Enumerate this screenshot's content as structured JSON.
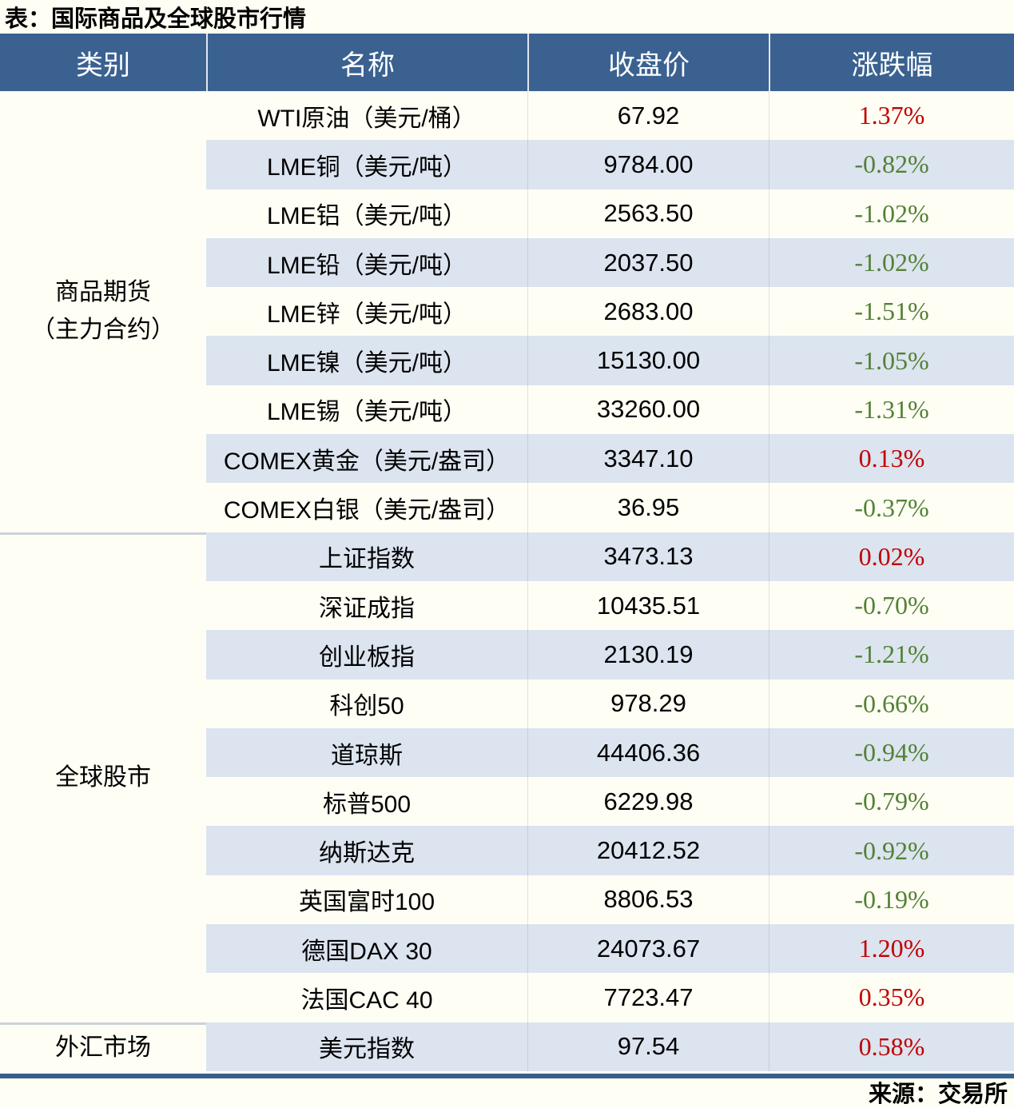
{
  "title": "表：国际商品及全球股市行情",
  "source": "来源：交易所",
  "columns": [
    "类别",
    "名称",
    "收盘价",
    "涨跌幅"
  ],
  "colors": {
    "header_bg": "#3A6190",
    "stripe_bg": "#DBE4EF",
    "cream_bg": "#FFFEF4",
    "up": "#C00000",
    "down": "#538135",
    "bottom_line": "#355F8D",
    "divider": "#CBD2D9"
  },
  "sections": [
    {
      "category_lines": [
        "商品期货",
        "（主力合约）"
      ],
      "rows": [
        {
          "name": "WTI原油（美元/桶）",
          "close": "67.92",
          "change": "1.37%",
          "dir": "up"
        },
        {
          "name": "LME铜（美元/吨）",
          "close": "9784.00",
          "change": "-0.82%",
          "dir": "down"
        },
        {
          "name": "LME铝（美元/吨）",
          "close": "2563.50",
          "change": "-1.02%",
          "dir": "down"
        },
        {
          "name": "LME铅（美元/吨）",
          "close": "2037.50",
          "change": "-1.02%",
          "dir": "down"
        },
        {
          "name": "LME锌（美元/吨）",
          "close": "2683.00",
          "change": "-1.51%",
          "dir": "down"
        },
        {
          "name": "LME镍（美元/吨）",
          "close": "15130.00",
          "change": "-1.05%",
          "dir": "down"
        },
        {
          "name": "LME锡（美元/吨）",
          "close": "33260.00",
          "change": "-1.31%",
          "dir": "down"
        },
        {
          "name": "COMEX黄金（美元/盎司）",
          "close": "3347.10",
          "change": "0.13%",
          "dir": "up"
        },
        {
          "name": "COMEX白银（美元/盎司）",
          "close": "36.95",
          "change": "-0.37%",
          "dir": "down"
        }
      ]
    },
    {
      "category_lines": [
        "全球股市"
      ],
      "rows": [
        {
          "name": "上证指数",
          "close": "3473.13",
          "change": "0.02%",
          "dir": "up"
        },
        {
          "name": "深证成指",
          "close": "10435.51",
          "change": "-0.70%",
          "dir": "down"
        },
        {
          "name": "创业板指",
          "close": "2130.19",
          "change": "-1.21%",
          "dir": "down"
        },
        {
          "name": "科创50",
          "close": "978.29",
          "change": "-0.66%",
          "dir": "down"
        },
        {
          "name": "道琼斯",
          "close": "44406.36",
          "change": "-0.94%",
          "dir": "down"
        },
        {
          "name": "标普500",
          "close": "6229.98",
          "change": "-0.79%",
          "dir": "down"
        },
        {
          "name": "纳斯达克",
          "close": "20412.52",
          "change": "-0.92%",
          "dir": "down"
        },
        {
          "name": "英国富时100",
          "close": "8806.53",
          "change": "-0.19%",
          "dir": "down"
        },
        {
          "name": "德国DAX 30",
          "close": "24073.67",
          "change": "1.20%",
          "dir": "up"
        },
        {
          "name": "法国CAC 40",
          "close": "7723.47",
          "change": "0.35%",
          "dir": "up"
        }
      ]
    },
    {
      "category_lines": [
        "外汇市场"
      ],
      "rows": [
        {
          "name": "美元指数",
          "close": "97.54",
          "change": "0.58%",
          "dir": "up"
        }
      ]
    }
  ]
}
